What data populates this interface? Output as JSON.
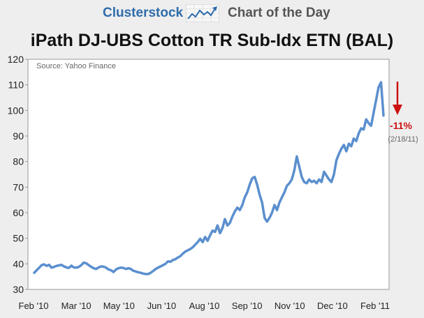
{
  "header": {
    "brand": "Clusterstock",
    "tagline": "Chart of the Day"
  },
  "chart_data": {
    "type": "line",
    "title": "iPath DJ-UBS Cotton TR Sub-Idx ETN (BAL)",
    "source_note": "Source: Yahoo Finance",
    "xlabel": "",
    "ylabel": "",
    "ylim": [
      30,
      120
    ],
    "y_ticks": [
      30,
      40,
      50,
      60,
      70,
      80,
      90,
      100,
      110,
      120
    ],
    "x_ticks": [
      "Feb '10",
      "Mar '10",
      "May '10",
      "Jun '10",
      "Aug '10",
      "Sep '10",
      "Nov '10",
      "Dec '10",
      "Feb '11"
    ],
    "grid": false,
    "series": [
      {
        "color": "#5b8fce",
        "values": [
          36.5,
          37.5,
          38.5,
          39.5,
          39.8,
          39.2,
          39.6,
          38.5,
          38.8,
          39.2,
          39.4,
          39.6,
          39.0,
          38.6,
          38.4,
          39.3,
          38.6,
          38.5,
          38.8,
          39.5,
          40.5,
          40.2,
          39.5,
          38.8,
          38.3,
          38.0,
          38.6,
          39.0,
          38.9,
          38.5,
          37.8,
          37.5,
          36.8,
          37.8,
          38.3,
          38.5,
          38.4,
          38.0,
          38.3,
          38.0,
          37.3,
          37.0,
          36.7,
          36.5,
          36.2,
          36.0,
          36.0,
          36.5,
          37.2,
          38.0,
          38.5,
          39.0,
          39.5,
          40.0,
          41.0,
          40.8,
          41.5,
          41.8,
          42.5,
          43.0,
          44.0,
          44.8,
          45.3,
          45.8,
          46.5,
          47.5,
          48.5,
          49.8,
          48.5,
          50.5,
          49.0,
          51.2,
          53.0,
          52.5,
          55.0,
          52.0,
          54.0,
          57.5,
          55.0,
          56.0,
          58.5,
          60.5,
          62.0,
          61.0,
          63.0,
          66.0,
          68.0,
          71.0,
          73.5,
          74.0,
          71.0,
          67.0,
          64.0,
          58.0,
          56.5,
          58.0,
          60.0,
          63.0,
          61.0,
          64.0,
          66.0,
          68.0,
          70.5,
          71.5,
          73.0,
          76.5,
          82.0,
          78.0,
          74.0,
          72.0,
          71.5,
          73.0,
          72.0,
          72.5,
          71.5,
          73.0,
          72.0,
          76.0,
          74.5,
          73.0,
          72.0,
          75.0,
          80.5,
          83.0,
          85.0,
          86.5,
          84.0,
          87.0,
          86.0,
          89.0,
          88.0,
          91.0,
          93.0,
          92.5,
          96.5,
          95.0,
          94.0,
          99.0,
          104.0,
          109.0,
          111.0,
          98.0
        ]
      }
    ],
    "annotations": [
      {
        "text": "-11%",
        "color": "#cc1111"
      },
      {
        "text": "(2/18/11)",
        "color": "#666666"
      }
    ]
  }
}
